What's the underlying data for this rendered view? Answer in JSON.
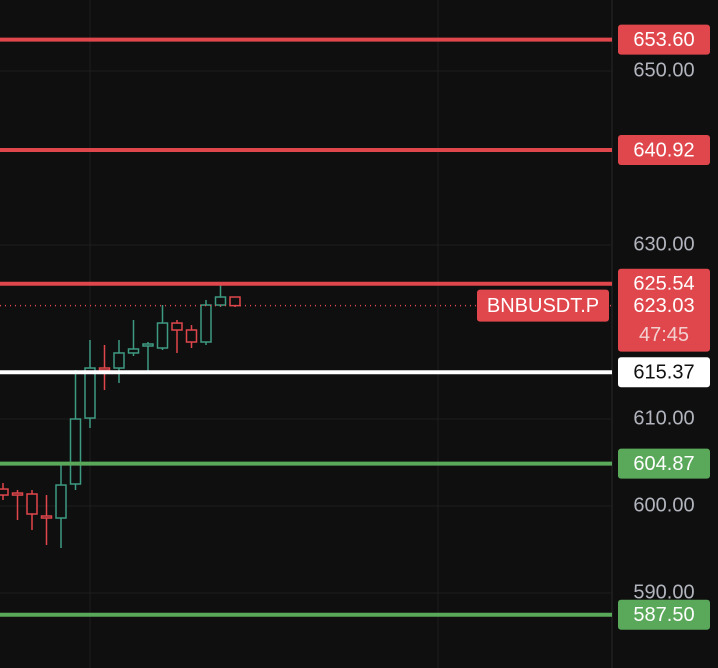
{
  "chart_data": {
    "type": "candlestick",
    "symbol": "BNBUSDT.P",
    "last_price": 623.03,
    "countdown": "47:45",
    "up_color": "#3f9a82",
    "down_color": "#e0474c",
    "grid": true,
    "ylim": [
      581.38,
      658.16
    ],
    "yticks": [
      {
        "value": 590,
        "label": "590.00"
      },
      {
        "value": 600,
        "label": "600.00"
      },
      {
        "value": 610,
        "label": "610.00"
      },
      {
        "value": 630,
        "label": "630.00"
      },
      {
        "value": 650,
        "label": "650.00"
      }
    ],
    "levels": [
      {
        "value": 653.6,
        "label": "653.60",
        "color": "#e0474c"
      },
      {
        "value": 640.92,
        "label": "640.92",
        "color": "#e0474c"
      },
      {
        "value": 625.54,
        "label": "625.54",
        "color": "#e0474c"
      },
      {
        "value": 615.37,
        "label": "615.37",
        "color": "#ffffff"
      },
      {
        "value": 604.87,
        "label": "604.87",
        "color": "#5aa85a"
      },
      {
        "value": 587.5,
        "label": "587.50",
        "color": "#5aa85a"
      }
    ],
    "candles": [
      {
        "open": 601.95,
        "high": 602.64,
        "low": 600.69,
        "close": 601.26
      },
      {
        "open": 601.49,
        "high": 601.84,
        "low": 598.39,
        "close": 601.26
      },
      {
        "open": 601.38,
        "high": 601.84,
        "low": 597.24,
        "close": 599.08
      },
      {
        "open": 598.85,
        "high": 601.26,
        "low": 595.52,
        "close": 598.62
      },
      {
        "open": 598.62,
        "high": 604.71,
        "low": 595.17,
        "close": 602.41
      },
      {
        "open": 602.53,
        "high": 615.63,
        "low": 601.84,
        "close": 610.0
      },
      {
        "open": 610.11,
        "high": 619.08,
        "low": 608.97,
        "close": 615.86
      },
      {
        "open": 615.86,
        "high": 618.51,
        "low": 613.33,
        "close": 615.63
      },
      {
        "open": 615.86,
        "high": 619.08,
        "low": 614.14,
        "close": 617.59
      },
      {
        "open": 617.59,
        "high": 621.38,
        "low": 617.24,
        "close": 618.05
      },
      {
        "open": 618.39,
        "high": 618.85,
        "low": 615.4,
        "close": 618.62
      },
      {
        "open": 618.16,
        "high": 623.1,
        "low": 617.93,
        "close": 621.03
      },
      {
        "open": 621.03,
        "high": 621.38,
        "low": 617.59,
        "close": 620.23
      },
      {
        "open": 620.23,
        "high": 620.8,
        "low": 618.16,
        "close": 618.85
      },
      {
        "open": 618.85,
        "high": 623.68,
        "low": 618.51,
        "close": 623.1
      },
      {
        "open": 623.1,
        "high": 625.4,
        "low": 622.87,
        "close": 624.02
      },
      {
        "open": 624.02,
        "high": 624.02,
        "low": 622.87,
        "close": 623.03
      }
    ]
  }
}
